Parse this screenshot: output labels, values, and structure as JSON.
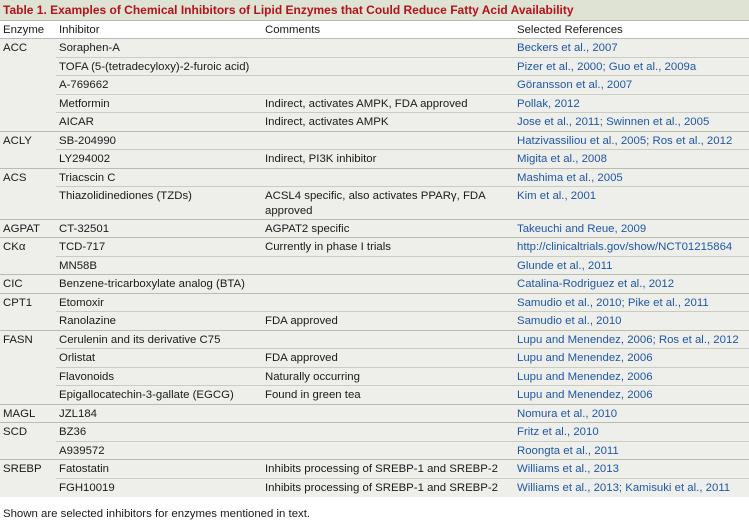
{
  "table": {
    "title": "Table 1.  Examples of Chemical Inhibitors of Lipid Enzymes that Could Reduce Fatty Acid Availability",
    "headers": [
      "Enzyme",
      "Inhibitor",
      "Comments",
      "Selected References"
    ],
    "rows": [
      {
        "enzyme": "ACC",
        "inhibitor": "Soraphen-A",
        "comments": "",
        "refs": "Beckers et al., 2007"
      },
      {
        "enzyme": "",
        "inhibitor": "TOFA (5-(tetradecyloxy)-2-furoic acid)",
        "comments": "",
        "refs": "Pizer et al., 2000; Guo et al., 2009a"
      },
      {
        "enzyme": "",
        "inhibitor": "A-769662",
        "comments": "",
        "refs": "Göransson et al., 2007"
      },
      {
        "enzyme": "",
        "inhibitor": "Metformin",
        "comments": "Indirect, activates AMPK, FDA approved",
        "refs": "Pollak, 2012"
      },
      {
        "enzyme": "",
        "inhibitor": "AICAR",
        "comments": "Indirect, activates AMPK",
        "refs": "Jose et al., 2011; Swinnen et al., 2005"
      },
      {
        "enzyme": "ACLY",
        "inhibitor": "SB-204990",
        "comments": "",
        "refs": "Hatzivassiliou et al., 2005; Ros et al., 2012"
      },
      {
        "enzyme": "",
        "inhibitor": "LY294002",
        "comments": "Indirect, PI3K inhibitor",
        "refs": "Migita et al., 2008"
      },
      {
        "enzyme": "ACS",
        "inhibitor": "Triacscin C",
        "comments": "",
        "refs": "Mashima et al., 2005"
      },
      {
        "enzyme": "",
        "inhibitor": "Thiazolidinediones (TZDs)",
        "comments": "ACSL4 specific, also activates PPARγ, FDA approved",
        "refs": "Kim et al., 2001"
      },
      {
        "enzyme": "AGPAT",
        "inhibitor": "CT-32501",
        "comments": "AGPAT2 specific",
        "refs": "Takeuchi and Reue, 2009"
      },
      {
        "enzyme": "CKα",
        "inhibitor": "TCD-717",
        "comments": "Currently in phase I trials",
        "refs": "http://clinicaltrials.gov/show/NCT01215864"
      },
      {
        "enzyme": "",
        "inhibitor": "MN58B",
        "comments": "",
        "refs": "Glunde et al., 2011"
      },
      {
        "enzyme": "CIC",
        "inhibitor": "Benzene-tricarboxylate analog (BTA)",
        "comments": "",
        "refs": "Catalina-Rodriguez et al., 2012"
      },
      {
        "enzyme": "CPT1",
        "inhibitor": "Etomoxir",
        "comments": "",
        "refs": "Samudio et al., 2010; Pike et al., 2011"
      },
      {
        "enzyme": "",
        "inhibitor": "Ranolazine",
        "comments": "FDA approved",
        "refs": "Samudio et al., 2010"
      },
      {
        "enzyme": "FASN",
        "inhibitor": "Cerulenin and its derivative C75",
        "comments": "",
        "refs": "Lupu and Menendez, 2006; Ros et al., 2012"
      },
      {
        "enzyme": "",
        "inhibitor": "Orlistat",
        "comments": "FDA approved",
        "refs": "Lupu and Menendez, 2006"
      },
      {
        "enzyme": "",
        "inhibitor": "Flavonoids",
        "comments": "Naturally occurring",
        "refs": "Lupu and Menendez, 2006"
      },
      {
        "enzyme": "",
        "inhibitor": "Epigallocatechin-3-gallate (EGCG)",
        "comments": "Found in green tea",
        "refs": "Lupu and Menendez, 2006"
      },
      {
        "enzyme": "MAGL",
        "inhibitor": "JZL184",
        "comments": "",
        "refs": "Nomura et al., 2010"
      },
      {
        "enzyme": "SCD",
        "inhibitor": "BZ36",
        "comments": "",
        "refs": "Fritz et al., 2010"
      },
      {
        "enzyme": "",
        "inhibitor": "A939572",
        "comments": "",
        "refs": "Roongta et al., 2011"
      },
      {
        "enzyme": "SREBP",
        "inhibitor": "Fatostatin",
        "comments": "Inhibits processing of SREBP-1 and SREBP-2",
        "refs": "Williams et al., 2013"
      },
      {
        "enzyme": "",
        "inhibitor": "FGH10019",
        "comments": "Inhibits processing of SREBP-1 and SREBP-2",
        "refs": "Williams et al., 2013; Kamisuki et al., 2011"
      }
    ],
    "footnote": "Shown are selected inhibitors for enzymes mentioned in text."
  },
  "colors": {
    "title_text": "#b5121b",
    "title_bg": "#dfe3d4",
    "row_bg": "#eeefea",
    "reference_link": "#1f57a8",
    "rule": "#b9bdb0"
  }
}
